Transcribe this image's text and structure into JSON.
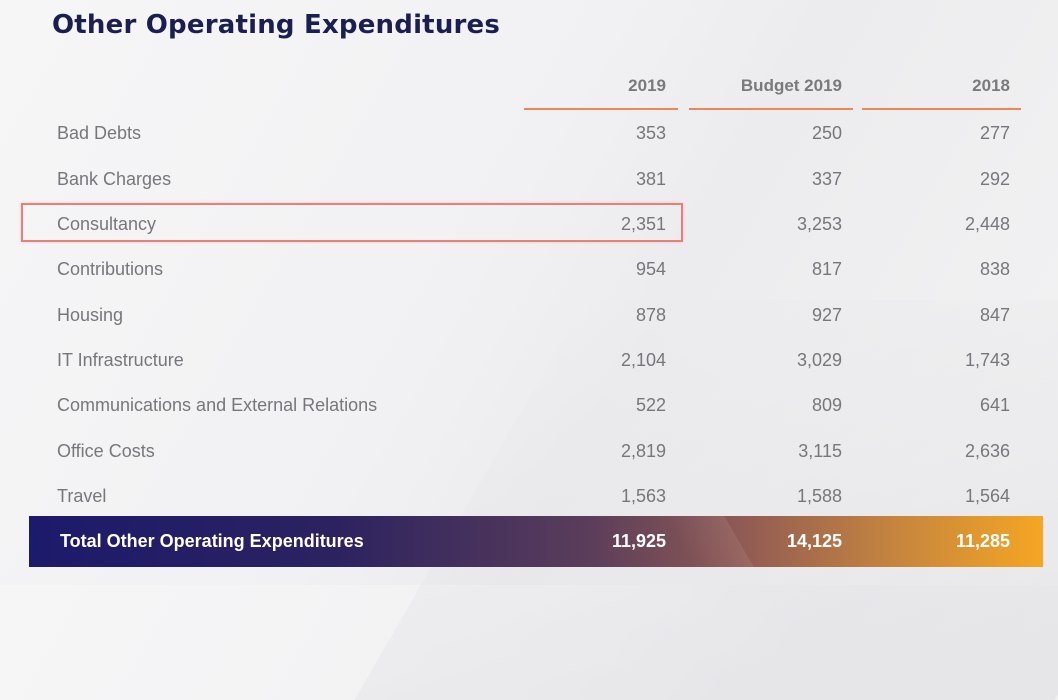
{
  "title": "Other Operating Expenditures",
  "columns": [
    "2019",
    "Budget 2019",
    "2018"
  ],
  "rows": [
    {
      "label": "Bad Debts",
      "v2019": "353",
      "budget2019": "250",
      "v2018": "277"
    },
    {
      "label": "Bank Charges",
      "v2019": "381",
      "budget2019": "337",
      "v2018": "292"
    },
    {
      "label": "Consultancy",
      "v2019": "2,351",
      "budget2019": "3,253",
      "v2018": "2,448"
    },
    {
      "label": "Contributions",
      "v2019": "954",
      "budget2019": "817",
      "v2018": "838"
    },
    {
      "label": "Housing",
      "v2019": "878",
      "budget2019": "927",
      "v2018": "847"
    },
    {
      "label": "IT Infrastructure",
      "v2019": "2,104",
      "budget2019": "3,029",
      "v2018": "1,743"
    },
    {
      "label": "Communications and External Relations",
      "v2019": "522",
      "budget2019": "809",
      "v2018": "641"
    },
    {
      "label": "Office Costs",
      "v2019": "2,819",
      "budget2019": "3,115",
      "v2018": "2,636"
    },
    {
      "label": "Travel",
      "v2019": "1,563",
      "budget2019": "1,588",
      "v2018": "1,564"
    }
  ],
  "total": {
    "label": "Total Other Operating Expenditures",
    "v2019": "11,925",
    "budget2019": "14,125",
    "v2018": "11,285"
  },
  "colors": {
    "title": "#1b1f4f",
    "accent_rule": "#f0855a",
    "highlight": "#e8807a",
    "total_start": "#1c1a6b",
    "total_end": "#f5a623"
  }
}
